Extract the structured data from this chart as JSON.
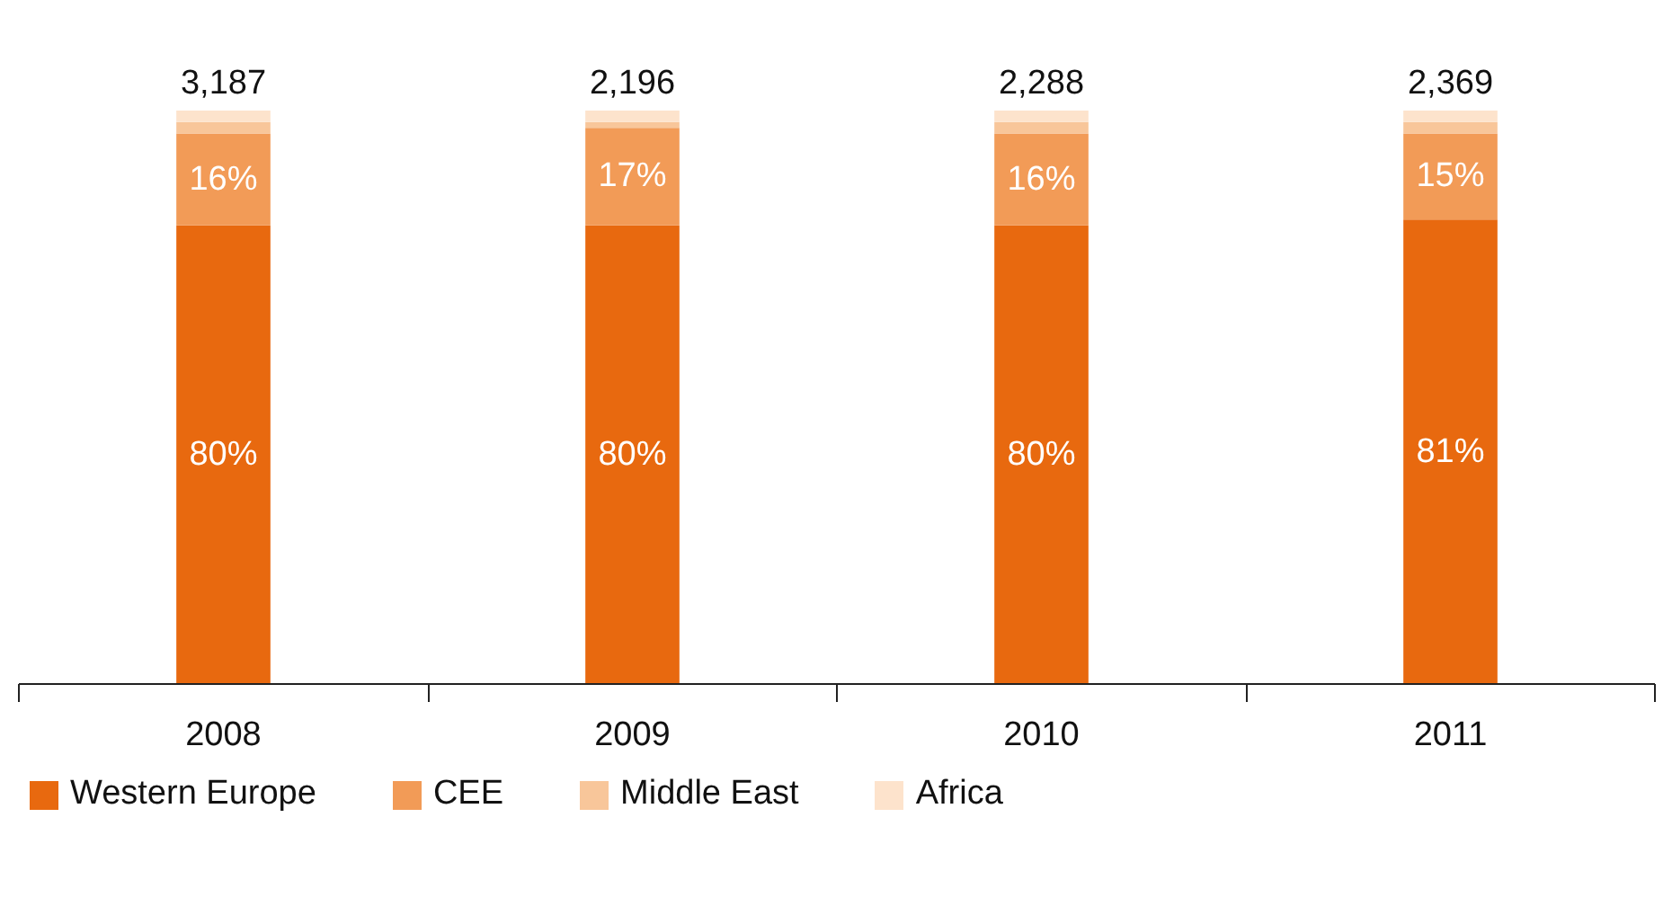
{
  "chart_data": {
    "type": "bar",
    "stacked": true,
    "categories": [
      "2008",
      "2009",
      "2010",
      "2011"
    ],
    "series": [
      {
        "name": "Western Europe",
        "color": "#e8690f",
        "values": [
          80,
          80,
          80,
          81
        ],
        "value_labels": [
          "80%",
          "80%",
          "80%",
          "81%"
        ]
      },
      {
        "name": "CEE",
        "color": "#f29b57",
        "values": [
          16,
          17,
          16,
          15
        ],
        "value_labels": [
          "16%",
          "17%",
          "16%",
          "15%"
        ]
      },
      {
        "name": "Middle East",
        "color": "#f8c69a",
        "values": [
          2,
          1,
          2,
          2
        ],
        "value_labels": [
          null,
          null,
          null,
          null
        ]
      },
      {
        "name": "Africa",
        "color": "#fde3cc",
        "values": [
          2,
          2,
          2,
          2
        ],
        "value_labels": [
          null,
          null,
          null,
          null
        ]
      }
    ],
    "annotations": [
      {
        "text": "3,187",
        "x": "2008",
        "y": 100
      },
      {
        "text": "2,196",
        "x": "2009",
        "y": 100
      },
      {
        "text": "2,288",
        "x": "2010",
        "y": 100
      },
      {
        "text": "2,369",
        "x": "2011",
        "y": 100
      }
    ],
    "legend": "bottom"
  }
}
